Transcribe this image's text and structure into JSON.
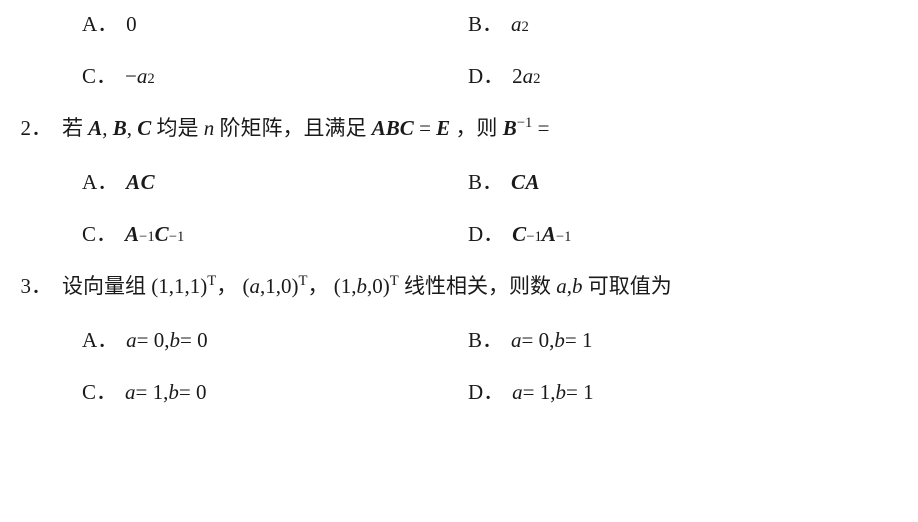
{
  "typography": {
    "font_family": "Times New Roman / SimSun",
    "base_fontsize_pt": 16,
    "text_color": "#1a1a1a",
    "background_color": "#ffffff"
  },
  "q1": {
    "A": {
      "label": "A．",
      "value": "0"
    },
    "B": {
      "label": "B．",
      "var": "a",
      "exp": "2"
    },
    "C": {
      "label": "C．",
      "neg": "−",
      "var": "a",
      "exp": "2"
    },
    "D": {
      "label": "D．",
      "coef": "2",
      "var": "a",
      "exp": "2"
    }
  },
  "q2": {
    "number": "2．",
    "stem_1": "若",
    "A": "A",
    "comma1": ", ",
    "B": "B",
    "comma2": ", ",
    "C": "C",
    "stem_2": " 均是 ",
    "n": "n",
    "stem_3": " 阶矩阵，且满足 ",
    "ABC": "ABC",
    "eq": " = ",
    "E": "E",
    "stem_4": " ，则 ",
    "Binv_B": "B",
    "Binv_exp": "−1",
    "stem_5": " =",
    "optA": {
      "label": "A．",
      "t1": "AC"
    },
    "optB": {
      "label": "B．",
      "t1": "CA"
    },
    "optC": {
      "label": "C．",
      "t1": "A",
      "e1": "−1",
      "t2": "C",
      "e2": "−1"
    },
    "optD": {
      "label": "D．",
      "t1": "C",
      "e1": "−1",
      "t2": "A",
      "e2": "−1"
    }
  },
  "q3": {
    "number": "3．",
    "stem_1": "设向量组",
    "v1": "(1,1,1)",
    "T": "T",
    "c1": "，",
    "v2_l": "(",
    "v2_a": "a",
    "v2_r": ",1,0)",
    "c2": "，",
    "v3_l": "(1,",
    "v3_b": "b",
    "v3_r": ",0)",
    "stem_2": "线性相关，则数",
    "ab": "a",
    "comma": ",",
    "bb": "b",
    "stem_3": " 可取值为",
    "optA": {
      "label": "A．",
      "a": "a",
      "eq1": " = 0, ",
      "b": "b",
      "eq2": " = 0"
    },
    "optB": {
      "label": "B．",
      "a": "a",
      "eq1": " = 0, ",
      "b": "b",
      "eq2": " = 1"
    },
    "optC": {
      "label": "C．",
      "a": "a",
      "eq1": " = 1, ",
      "b": "b",
      "eq2": " = 0"
    },
    "optD": {
      "label": "D．",
      "a": "a",
      "eq1": " = 1, ",
      "b": "b",
      "eq2": " = 1"
    }
  }
}
